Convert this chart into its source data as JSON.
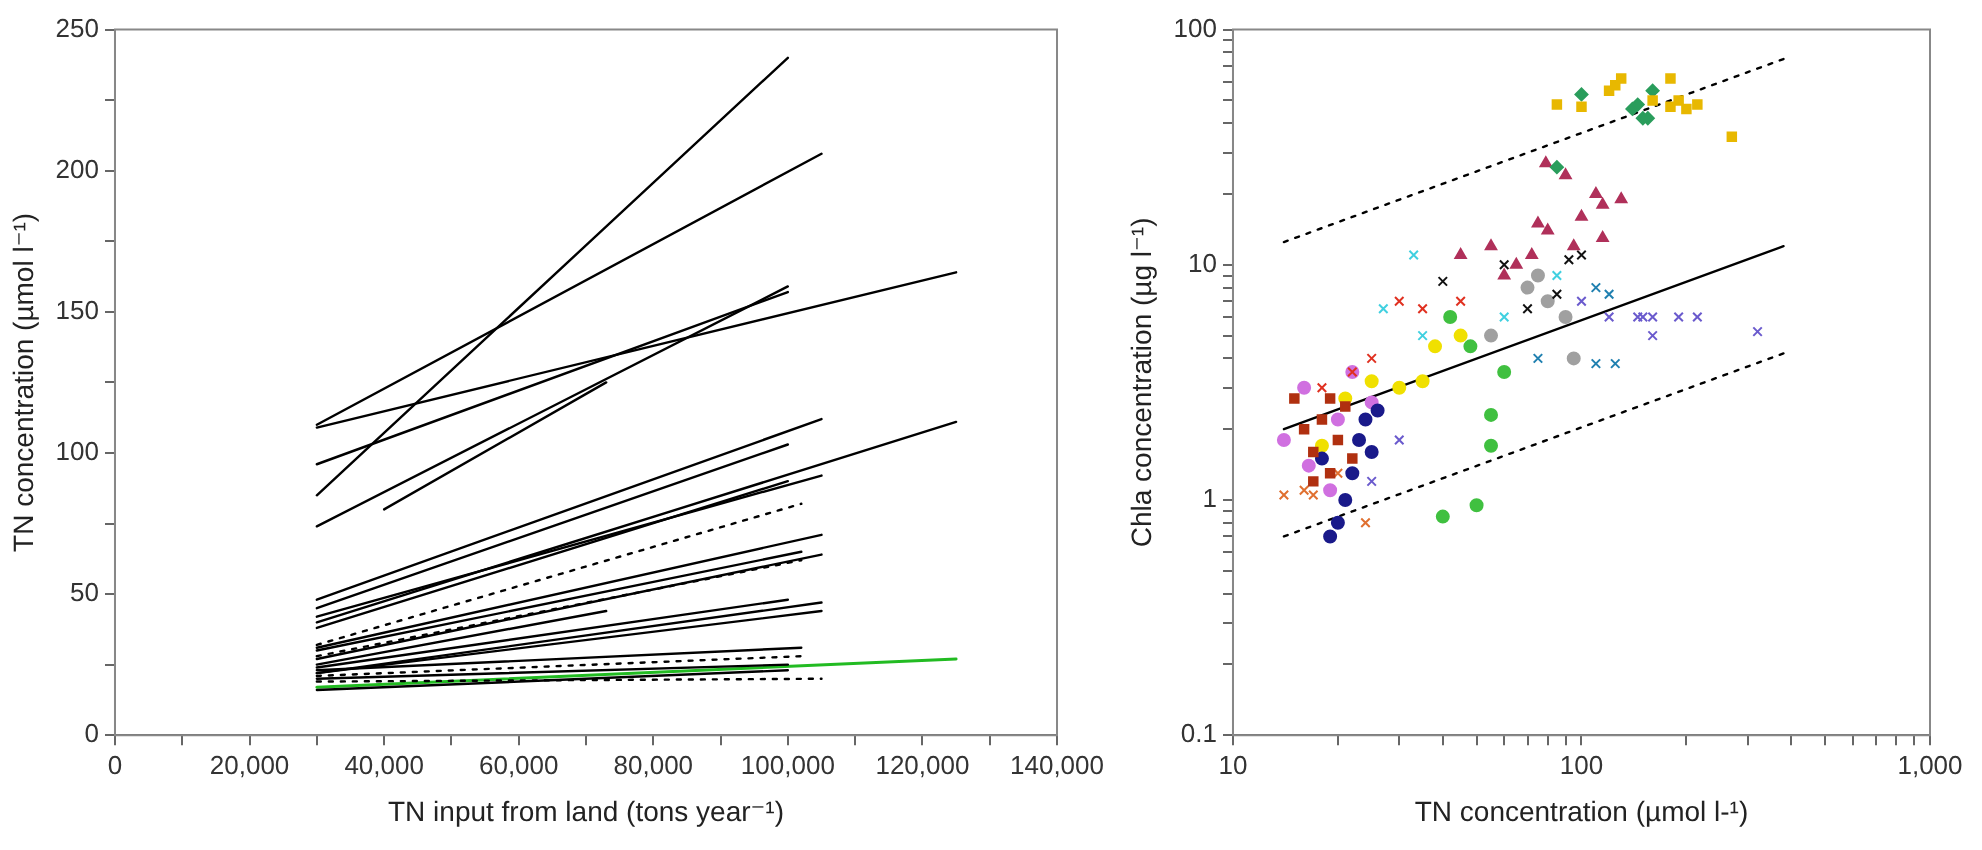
{
  "chart_data": [
    {
      "type": "line",
      "xlabel": "TN input from land (tons year⁻¹)",
      "ylabel": "TN concentration (µmol l⁻¹)",
      "xlim": [
        0,
        140000
      ],
      "ylim": [
        0,
        250
      ],
      "xticks": [
        0,
        {
          "value": 10000,
          "label": null
        },
        {
          "value": 20000,
          "label": "20,000"
        },
        {
          "value": 30000,
          "label": null
        },
        {
          "value": 40000,
          "label": "40,000"
        },
        {
          "value": 50000,
          "label": null
        },
        {
          "value": 60000,
          "label": "60,000"
        },
        {
          "value": 70000,
          "label": null
        },
        {
          "value": 80000,
          "label": "80,000"
        },
        {
          "value": 90000,
          "label": null
        },
        {
          "value": 100000,
          "label": "100,000"
        },
        {
          "value": 110000,
          "label": null
        },
        {
          "value": 120000,
          "label": "120,000"
        },
        {
          "value": 130000,
          "label": null
        },
        {
          "value": 140000,
          "label": "140,000"
        }
      ],
      "yticks": [
        0,
        {
          "value": 25,
          "label": null
        },
        50,
        {
          "value": 75,
          "label": null
        },
        100,
        {
          "value": 125,
          "label": null
        },
        150,
        {
          "value": 175,
          "label": null
        },
        200,
        {
          "value": 225,
          "label": null
        },
        250
      ],
      "grid": false,
      "legend": false,
      "marker": "none",
      "series": [
        {
          "color": "#000000",
          "x": [
            30000,
            100000
          ],
          "values": [
            85,
            240
          ]
        },
        {
          "color": "#000000",
          "x": [
            30000,
            105000
          ],
          "values": [
            110,
            206
          ]
        },
        {
          "color": "#000000",
          "x": [
            30000,
            125000
          ],
          "values": [
            109,
            164
          ]
        },
        {
          "color": "#000000",
          "x": [
            30000,
            100000
          ],
          "values": [
            96,
            157
          ]
        },
        {
          "color": "#000000",
          "x": [
            30000,
            100000
          ],
          "values": [
            74,
            159
          ]
        },
        {
          "color": "#000000",
          "x": [
            40000,
            73000
          ],
          "values": [
            80,
            125
          ]
        },
        {
          "color": "#000000",
          "x": [
            30000,
            105000
          ],
          "values": [
            48,
            112
          ]
        },
        {
          "color": "#000000",
          "x": [
            30000,
            100000
          ],
          "values": [
            45,
            103
          ]
        },
        {
          "color": "#000000",
          "x": [
            30000,
            125000
          ],
          "values": [
            40,
            111
          ]
        },
        {
          "color": "#000000",
          "x": [
            30000,
            105000
          ],
          "values": [
            42,
            92
          ]
        },
        {
          "color": "#000000",
          "x": [
            30000,
            100000
          ],
          "values": [
            38,
            90
          ]
        },
        {
          "color": "#000000",
          "x": [
            30000,
            102000
          ],
          "values": [
            32,
            82
          ],
          "line_style": "dotted"
        },
        {
          "color": "#000000",
          "x": [
            30000,
            105000
          ],
          "values": [
            31,
            71
          ]
        },
        {
          "color": "#000000",
          "x": [
            30000,
            102000
          ],
          "values": [
            30,
            65
          ]
        },
        {
          "color": "#000000",
          "x": [
            30000,
            102000
          ],
          "values": [
            28,
            62
          ],
          "line_style": "dotted"
        },
        {
          "color": "#000000",
          "x": [
            30000,
            105000
          ],
          "values": [
            27,
            64
          ]
        },
        {
          "color": "#000000",
          "x": [
            30000,
            73000
          ],
          "values": [
            25,
            44
          ]
        },
        {
          "color": "#000000",
          "x": [
            30000,
            100000
          ],
          "values": [
            24,
            48
          ]
        },
        {
          "color": "#000000",
          "x": [
            30000,
            105000
          ],
          "values": [
            22,
            47
          ]
        },
        {
          "color": "#000000",
          "x": [
            30000,
            105000
          ],
          "values": [
            22,
            44
          ]
        },
        {
          "color": "#000000",
          "x": [
            30000,
            102000
          ],
          "values": [
            23,
            31
          ]
        },
        {
          "color": "#000000",
          "x": [
            30000,
            102000
          ],
          "values": [
            21,
            28
          ],
          "line_style": "dotted"
        },
        {
          "color": "#000000",
          "x": [
            30000,
            100000
          ],
          "values": [
            20,
            25
          ]
        },
        {
          "color": "#000000",
          "x": [
            30000,
            105000
          ],
          "values": [
            19,
            20
          ],
          "line_style": "dotted"
        },
        {
          "color": "#000000",
          "x": [
            30000,
            100000
          ],
          "values": [
            16,
            23
          ]
        },
        {
          "color": "#22bb22",
          "x": [
            30000,
            125000
          ],
          "values": [
            17,
            27
          ]
        }
      ]
    },
    {
      "type": "scatter",
      "xlabel": "TN concentration (µmol l-¹)",
      "ylabel": "Chla concentration (µg l⁻¹)",
      "log": "xy",
      "xlim": [
        10,
        1000
      ],
      "ylim": [
        0.1,
        100
      ],
      "xticks": [
        10,
        {
          "value": 20,
          "label": null
        },
        {
          "value": 30,
          "label": null
        },
        {
          "value": 40,
          "label": null
        },
        {
          "value": 50,
          "label": null
        },
        {
          "value": 60,
          "label": null
        },
        {
          "value": 70,
          "label": null
        },
        {
          "value": 80,
          "label": null
        },
        {
          "value": 90,
          "label": null
        },
        100,
        {
          "value": 200,
          "label": null
        },
        {
          "value": 300,
          "label": null
        },
        {
          "value": 400,
          "label": null
        },
        {
          "value": 500,
          "label": null
        },
        {
          "value": 600,
          "label": null
        },
        {
          "value": 700,
          "label": null
        },
        {
          "value": 800,
          "label": null
        },
        {
          "value": 900,
          "label": null
        },
        {
          "value": 1000,
          "label": "1,000"
        }
      ],
      "yticks": [
        0.1,
        {
          "value": 0.2,
          "label": null
        },
        {
          "value": 0.3,
          "label": null
        },
        {
          "value": 0.4,
          "label": null
        },
        {
          "value": 0.5,
          "label": null
        },
        {
          "value": 0.6,
          "label": null
        },
        {
          "value": 0.7,
          "label": null
        },
        {
          "value": 0.8,
          "label": null
        },
        {
          "value": 0.9,
          "label": null
        },
        1,
        {
          "value": 2,
          "label": null
        },
        {
          "value": 3,
          "label": null
        },
        {
          "value": 4,
          "label": null
        },
        {
          "value": 5,
          "label": null
        },
        {
          "value": 6,
          "label": null
        },
        {
          "value": 7,
          "label": null
        },
        {
          "value": 8,
          "label": null
        },
        {
          "value": 9,
          "label": null
        },
        10,
        {
          "value": 20,
          "label": null
        },
        {
          "value": 30,
          "label": null
        },
        {
          "value": 40,
          "label": null
        },
        {
          "value": 50,
          "label": null
        },
        {
          "value": 60,
          "label": null
        },
        {
          "value": 70,
          "label": null
        },
        {
          "value": 80,
          "label": null
        },
        {
          "value": 90,
          "label": null
        },
        100
      ],
      "grid": false,
      "legend": false,
      "series": [
        {
          "color": "#e8b800",
          "marker": "square",
          "x": [
            85,
            100,
            120,
            125,
            130,
            160,
            180,
            180,
            190,
            200,
            215,
            270
          ],
          "values": [
            48,
            47,
            55,
            58,
            62,
            50,
            62,
            47,
            50,
            46,
            48,
            35
          ]
        },
        {
          "color": "#2a9d5c",
          "marker": "diamond",
          "x": [
            85,
            100,
            140,
            145,
            150,
            155,
            160
          ],
          "values": [
            26,
            53,
            46,
            48,
            42,
            42,
            55
          ]
        },
        {
          "color": "#b0305a",
          "marker": "triangle",
          "x": [
            45,
            55,
            60,
            65,
            72,
            75,
            80,
            79,
            90,
            95,
            100,
            110,
            115,
            115,
            130
          ],
          "values": [
            11,
            12,
            9,
            10,
            11,
            15,
            14,
            27,
            24,
            12,
            16,
            20,
            18,
            13,
            19
          ]
        },
        {
          "color": "#6a5acd",
          "marker": "cross",
          "x": [
            25,
            30,
            100,
            120,
            145,
            150,
            160,
            160,
            190,
            215,
            320
          ],
          "values": [
            1.2,
            1.8,
            7,
            6,
            6,
            6,
            5,
            6,
            6,
            6,
            5.2
          ]
        },
        {
          "color": "#111111",
          "marker": "cross",
          "x": [
            40,
            60,
            70,
            85,
            92,
            100
          ],
          "values": [
            8.5,
            10,
            6.5,
            7.5,
            10.5,
            11
          ]
        },
        {
          "color": "#40d0e0",
          "marker": "cross",
          "x": [
            27,
            33,
            35,
            60,
            85
          ],
          "values": [
            6.5,
            11,
            5,
            6,
            9
          ]
        },
        {
          "color": "#a0a0a0",
          "marker": "circle",
          "x": [
            55,
            70,
            75,
            80,
            90,
            95
          ],
          "values": [
            5,
            8,
            9,
            7,
            6,
            4
          ]
        },
        {
          "color": "#e03020",
          "marker": "cross",
          "x": [
            18,
            22,
            25,
            30,
            35,
            45
          ],
          "values": [
            3,
            3.5,
            4,
            7,
            6.5,
            7
          ]
        },
        {
          "color": "#b03010",
          "marker": "square",
          "x": [
            15,
            16,
            17,
            17,
            18,
            19,
            19,
            20,
            21,
            22
          ],
          "values": [
            2.7,
            2,
            1.6,
            1.2,
            2.2,
            1.3,
            2.7,
            1.8,
            2.5,
            1.5
          ]
        },
        {
          "color": "#1a1a8a",
          "marker": "circle",
          "x": [
            18,
            19,
            20,
            21,
            22,
            23,
            24,
            25,
            26
          ],
          "values": [
            1.5,
            0.7,
            0.8,
            1,
            1.3,
            1.8,
            2.2,
            1.6,
            2.4
          ]
        },
        {
          "color": "#d070e0",
          "marker": "circle",
          "x": [
            14,
            16,
            16.5,
            19,
            20,
            22,
            25
          ],
          "values": [
            1.8,
            3,
            1.4,
            1.1,
            2.2,
            3.5,
            2.6
          ]
        },
        {
          "color": "#f0e000",
          "marker": "circle",
          "x": [
            18,
            21,
            25,
            30,
            35,
            38,
            45
          ],
          "values": [
            1.7,
            2.7,
            3.2,
            3,
            3.2,
            4.5,
            5
          ]
        },
        {
          "color": "#e07030",
          "marker": "cross",
          "x": [
            14,
            16,
            17,
            20,
            24
          ],
          "values": [
            1.05,
            1.1,
            1.05,
            1.3,
            0.8
          ]
        },
        {
          "color": "#40c040",
          "marker": "circle",
          "x": [
            40,
            42,
            48,
            50,
            55,
            55,
            60
          ],
          "values": [
            0.85,
            6,
            4.5,
            0.95,
            1.7,
            2.3,
            3.5
          ]
        },
        {
          "color": "#2080b0",
          "marker": "cross",
          "x": [
            75,
            110,
            110,
            120,
            125
          ],
          "values": [
            4,
            3.8,
            8,
            7.5,
            3.8
          ]
        },
        {
          "type": "line",
          "color": "#000000",
          "marker": "none",
          "line_style": "solid",
          "x": [
            14,
            380
          ],
          "values": [
            2,
            12
          ]
        },
        {
          "type": "line",
          "color": "#000000",
          "marker": "none",
          "line_style": "dotted",
          "x": [
            14,
            380
          ],
          "values": [
            12.5,
            75
          ]
        },
        {
          "type": "line",
          "color": "#000000",
          "marker": "none",
          "line_style": "dotted",
          "x": [
            14,
            380
          ],
          "values": [
            0.7,
            4.2
          ]
        }
      ]
    }
  ]
}
